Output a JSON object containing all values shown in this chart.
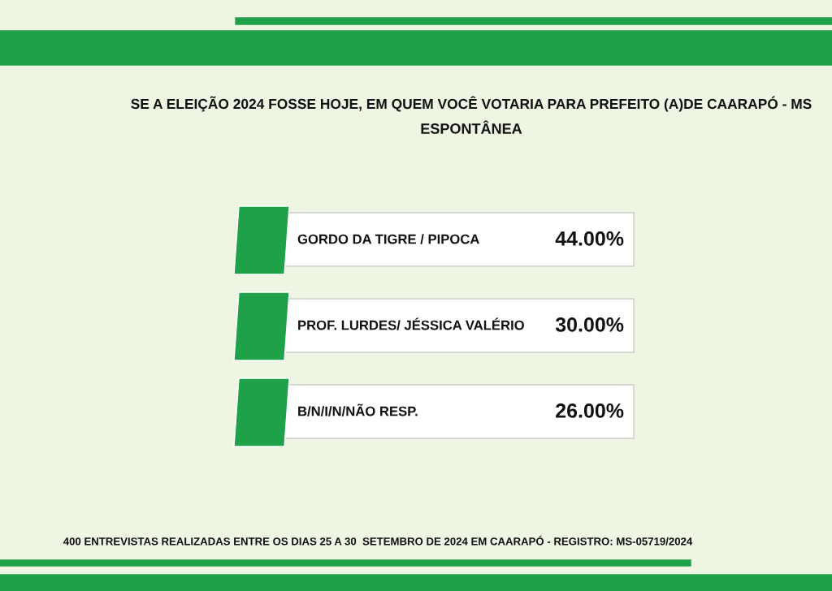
{
  "chart_data": {
    "type": "other",
    "title": "SE A ELEIÇÃO 2024 FOSSE HOJE, EM QUEM VOCÊ VOTARIA PARA PREFEITO (A)DE CAARAPÓ - MS",
    "subtitle": "ESPONTÂNEA",
    "categories": [
      "GORDO DA TIGRE / PIPOCA",
      "PROF. LURDES/ JÉSSICA VALÉRIO",
      "B/N/I/N/NÃO RESP."
    ],
    "values": [
      44,
      30,
      26
    ],
    "value_labels": [
      "44.00%",
      "30.00%",
      "26.00%"
    ],
    "color": "#ffffff",
    "annotations": [
      "400 ENTREVISTAS REALIZADAS ENTRE OS DIAS 25 A 30  SETEMBRO DE 2024 EM CAARAPÓ - REGISTRO: MS-05719/2024"
    ]
  }
}
